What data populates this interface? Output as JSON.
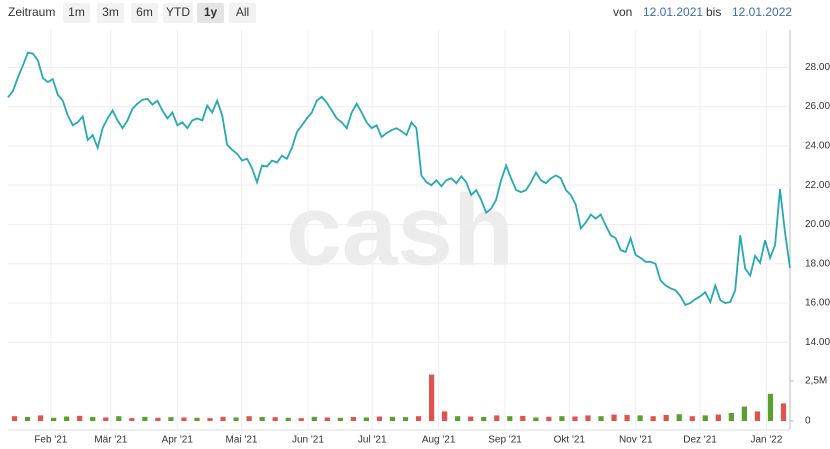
{
  "toolbar": {
    "label": "Zeitraum",
    "ranges": [
      "1m",
      "3m",
      "6m",
      "YTD",
      "1y",
      "All"
    ],
    "active": 4,
    "from_label": "von",
    "from": "12.01.2021",
    "to_label": "bis",
    "to": "12.01.2022"
  },
  "watermark": "cash",
  "chart_data": [
    {
      "type": "line",
      "color": "#26a9b5",
      "values": [
        26.47,
        26.8,
        27.5,
        28.1,
        28.75,
        28.7,
        28.35,
        27.45,
        27.25,
        27.4,
        26.6,
        26.3,
        25.55,
        25.05,
        25.2,
        25.5,
        24.3,
        24.55,
        23.9,
        24.9,
        25.4,
        25.8,
        25.3,
        24.9,
        25.3,
        25.9,
        26.15,
        26.35,
        26.4,
        26.1,
        26.3,
        25.8,
        25.4,
        25.7,
        25.05,
        25.2,
        24.9,
        25.3,
        25.4,
        25.3,
        26.05,
        25.7,
        26.3,
        25.55,
        24.05,
        23.8,
        23.6,
        23.25,
        23.35,
        22.85,
        22.15,
        23.0,
        22.95,
        23.25,
        23.15,
        23.5,
        23.35,
        23.9,
        24.7,
        25.05,
        25.4,
        25.7,
        26.3,
        26.5,
        26.2,
        25.8,
        25.4,
        25.2,
        24.9,
        25.7,
        26.15,
        25.7,
        25.2,
        24.9,
        25.05,
        24.45,
        24.65,
        24.8,
        24.9,
        24.75,
        24.55,
        25.2,
        24.9,
        22.5,
        22.15,
        22.0,
        22.25,
        21.95,
        22.25,
        22.35,
        22.1,
        22.45,
        22.15,
        21.5,
        21.75,
        21.25,
        20.6,
        20.8,
        21.25,
        22.25,
        23.0,
        22.35,
        21.75,
        21.65,
        21.75,
        22.15,
        22.65,
        22.25,
        22.1,
        22.35,
        22.5,
        22.35,
        21.75,
        21.5,
        21.0,
        19.8,
        20.1,
        20.5,
        20.3,
        20.5,
        19.95,
        19.45,
        19.3,
        18.7,
        18.6,
        19.3,
        18.45,
        18.3,
        18.1,
        18.1,
        18.0,
        17.15,
        16.9,
        16.75,
        16.65,
        16.35,
        15.9,
        16.0,
        16.2,
        16.35,
        16.55,
        16.05,
        16.9,
        16.15,
        16.0,
        16.05,
        16.65,
        19.45,
        17.75,
        17.4,
        18.4,
        18.05,
        19.2,
        18.3,
        18.95,
        21.8,
        19.6,
        17.8
      ],
      "ylim": [
        13.1,
        29.9
      ],
      "yticks": [
        {
          "value": 14,
          "label": "14.00"
        },
        {
          "value": 16,
          "label": "16.00"
        },
        {
          "value": 18,
          "label": "18.00"
        },
        {
          "value": 20,
          "label": "20.00"
        },
        {
          "value": 22,
          "label": "22.00"
        },
        {
          "value": 24,
          "label": "24.00"
        },
        {
          "value": 26,
          "label": "26.00"
        },
        {
          "value": 28,
          "label": "28.00"
        }
      ],
      "xticks": [
        {
          "value": "2021-02",
          "label": "Feb '21"
        },
        {
          "value": "2021-03",
          "label": "Mär '21"
        },
        {
          "value": "2021-04",
          "label": "Apr '21"
        },
        {
          "value": "2021-05",
          "label": "Mai '21"
        },
        {
          "value": "2021-06",
          "label": "Jun '21"
        },
        {
          "value": "2021-07",
          "label": "Jul '21"
        },
        {
          "value": "2021-08",
          "label": "Aug '21"
        },
        {
          "value": "2021-09",
          "label": "Sep '21"
        },
        {
          "value": "2021-10",
          "label": "Okt '21"
        },
        {
          "value": "2021-11",
          "label": "Nov '21"
        },
        {
          "value": "2021-12",
          "label": "Dez '21"
        },
        {
          "value": "2022-01",
          "label": "Jan '22"
        }
      ],
      "grid": true
    },
    {
      "type": "bar",
      "values": [
        300000,
        250000,
        350000,
        200000,
        280000,
        320000,
        250000,
        220000,
        300000,
        180000,
        260000,
        200000,
        240000,
        220000,
        200000,
        180000,
        260000,
        220000,
        300000,
        250000,
        240000,
        200000,
        180000,
        260000,
        220000,
        200000,
        250000,
        220000,
        280000,
        260000,
        240000,
        300000,
        2900000,
        600000,
        300000,
        280000,
        250000,
        350000,
        300000,
        320000,
        220000,
        260000,
        300000,
        280000,
        350000,
        300000,
        400000,
        380000,
        350000,
        300000,
        380000,
        420000,
        300000,
        350000,
        400000,
        500000,
        900000,
        600000,
        1700000,
        1100000
      ],
      "colors": [
        "#e2534f",
        "#5aa02c",
        "#e2534f",
        "#5aa02c",
        "#5aa02c",
        "#e2534f",
        "#5aa02c",
        "#e2534f",
        "#5aa02c",
        "#e2534f",
        "#5aa02c",
        "#e2534f",
        "#5aa02c",
        "#e2534f",
        "#5aa02c",
        "#e2534f",
        "#e2534f",
        "#5aa02c",
        "#e2534f",
        "#5aa02c",
        "#e2534f",
        "#5aa02c",
        "#e2534f",
        "#5aa02c",
        "#e2534f",
        "#5aa02c",
        "#e2534f",
        "#5aa02c",
        "#e2534f",
        "#5aa02c",
        "#5aa02c",
        "#e2534f",
        "#e2534f",
        "#e2534f",
        "#5aa02c",
        "#e2534f",
        "#5aa02c",
        "#e2534f",
        "#5aa02c",
        "#e2534f",
        "#5aa02c",
        "#e2534f",
        "#5aa02c",
        "#e2534f",
        "#e2534f",
        "#5aa02c",
        "#e2534f",
        "#e2534f",
        "#5aa02c",
        "#e2534f",
        "#e2534f",
        "#5aa02c",
        "#e2534f",
        "#5aa02c",
        "#e2534f",
        "#5aa02c",
        "#5aa02c",
        "#e2534f",
        "#5aa02c",
        "#e2534f"
      ],
      "ylim": [
        0,
        3000000
      ],
      "yticks": [
        0,
        {
          "value": 2500000,
          "label": "2,5M"
        }
      ]
    }
  ]
}
